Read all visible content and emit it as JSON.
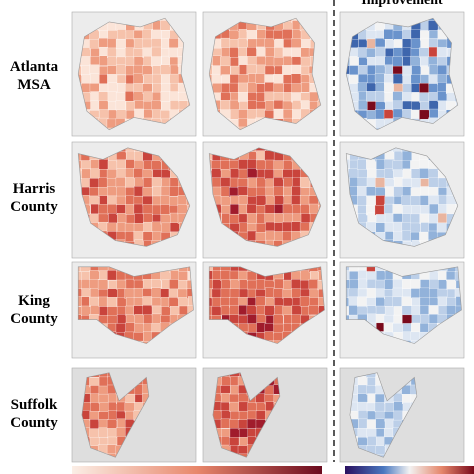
{
  "header": {
    "columns": [
      "Improvement"
    ]
  },
  "rows": [
    {
      "label": "Atlanta MSA"
    },
    {
      "label": "Harris County"
    },
    {
      "label": "King County"
    },
    {
      "label": "Suffolk County"
    }
  ]
}
